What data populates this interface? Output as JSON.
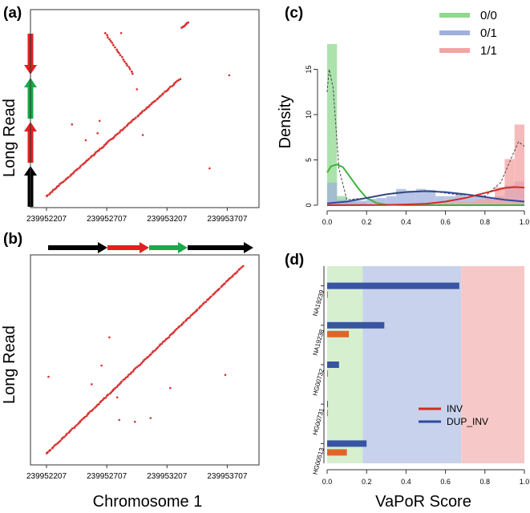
{
  "figure": {
    "x_axis_title_left": "Chromosome 1",
    "x_axis_title_right": "VaPoR Score"
  },
  "chart_data": [
    {
      "panel": "a",
      "label": "(a)",
      "type": "scatter",
      "title": "",
      "ylabel": "Long Read",
      "xlabel": "",
      "xticks": [
        "239952207",
        "239952707",
        "239953207",
        "239953707"
      ],
      "xlim": [
        0,
        1000
      ],
      "ylim": [
        0,
        1000
      ],
      "color": "#d93232",
      "read_structure": [
        {
          "segment": "black",
          "color": "#000000",
          "direction": "up"
        },
        {
          "segment": "red",
          "color": "#e02020",
          "direction": "up"
        },
        {
          "segment": "green",
          "color": "#1aa84a",
          "direction": "up"
        },
        {
          "segment": "red",
          "color": "#e02020",
          "direction": "down"
        }
      ],
      "diagonal_segments": [
        {
          "x": [
            0,
            680
          ],
          "y": [
            0,
            670
          ]
        },
        {
          "x": [
            300,
            440
          ],
          "y": [
            930,
            700
          ]
        },
        {
          "x": [
            690,
            720
          ],
          "y": [
            960,
            990
          ]
        }
      ],
      "outliers": [
        [
          130,
          410
        ],
        [
          270,
          430
        ],
        [
          490,
          350
        ],
        [
          260,
          360
        ],
        [
          460,
          610
        ],
        [
          830,
          160
        ],
        [
          930,
          690
        ],
        [
          380,
          930
        ],
        [
          200,
          320
        ]
      ]
    },
    {
      "panel": "b",
      "label": "(b)",
      "type": "scatter",
      "title": "",
      "ylabel": "Long Read",
      "xlabel": "Chromosome 1",
      "xticks": [
        "239952207",
        "239952707",
        "239953207",
        "239953707"
      ],
      "xlim": [
        0,
        1000
      ],
      "ylim": [
        0,
        1000
      ],
      "color": "#d93232",
      "ref_structure": [
        {
          "segment": "black",
          "color": "#000000"
        },
        {
          "segment": "red",
          "color": "#e02020"
        },
        {
          "segment": "green",
          "color": "#1aa84a"
        },
        {
          "segment": "black",
          "color": "#000000"
        }
      ],
      "diagonal_segments": [
        {
          "x": [
            0,
            1000
          ],
          "y": [
            0,
            1000
          ]
        }
      ],
      "outliers": [
        [
          320,
          620
        ],
        [
          340,
          340
        ],
        [
          280,
          470
        ],
        [
          360,
          300
        ],
        [
          450,
          170
        ],
        [
          530,
          190
        ],
        [
          630,
          350
        ],
        [
          910,
          420
        ],
        [
          10,
          410
        ],
        [
          230,
          370
        ],
        [
          370,
          180
        ]
      ]
    },
    {
      "panel": "c",
      "label": "(c)",
      "type": "bar",
      "title": "",
      "xlabel": "",
      "ylabel": "Density",
      "xlim": [
        0,
        1
      ],
      "ylim": [
        0,
        20
      ],
      "xticks": [
        "0.0",
        "0.2",
        "0.4",
        "0.6",
        "0.8",
        "1.0"
      ],
      "yticks": [
        "0",
        "5",
        "10",
        "15"
      ],
      "bin_width": 0.05,
      "series": [
        {
          "name": "0/0",
          "color": "#90d890",
          "line_color": "#3cb43c",
          "bins": [
            [
              0.0,
              17.8
            ],
            [
              0.05,
              1.0
            ],
            [
              0.1,
              0.5
            ],
            [
              0.15,
              0.3
            ]
          ],
          "curve": [
            [
              0.0,
              3.6
            ],
            [
              0.02,
              4.3
            ],
            [
              0.05,
              4.5
            ],
            [
              0.08,
              4.2
            ],
            [
              0.12,
              3.0
            ],
            [
              0.16,
              1.8
            ],
            [
              0.2,
              0.8
            ],
            [
              0.25,
              0.25
            ],
            [
              0.3,
              0.05
            ],
            [
              0.4,
              0.0
            ],
            [
              1.0,
              0.0
            ]
          ]
        },
        {
          "name": "0/1",
          "color": "#9fb0dc",
          "line_color": "#2e4aa0",
          "bins": [
            [
              0.0,
              2.5
            ],
            [
              0.05,
              0.6
            ],
            [
              0.1,
              0.4
            ],
            [
              0.15,
              0.5
            ],
            [
              0.2,
              0.7
            ],
            [
              0.25,
              0.8
            ],
            [
              0.3,
              1.0
            ],
            [
              0.35,
              1.8
            ],
            [
              0.4,
              1.6
            ],
            [
              0.45,
              1.8
            ],
            [
              0.5,
              1.7
            ],
            [
              0.55,
              1.0
            ],
            [
              0.6,
              1.0
            ],
            [
              0.65,
              1.2
            ],
            [
              0.7,
              1.0
            ],
            [
              0.75,
              1.1
            ],
            [
              0.8,
              0.8
            ],
            [
              0.85,
              1.0
            ],
            [
              0.9,
              2.2
            ],
            [
              0.95,
              2.6
            ]
          ],
          "curve": [
            [
              0.0,
              0.2
            ],
            [
              0.1,
              0.4
            ],
            [
              0.2,
              0.8
            ],
            [
              0.3,
              1.2
            ],
            [
              0.4,
              1.45
            ],
            [
              0.5,
              1.55
            ],
            [
              0.6,
              1.45
            ],
            [
              0.7,
              1.2
            ],
            [
              0.8,
              0.9
            ],
            [
              0.9,
              0.6
            ],
            [
              1.0,
              0.4
            ]
          ]
        },
        {
          "name": "1/1",
          "color": "#f4a3a3",
          "line_color": "#d62828",
          "bins": [
            [
              0.55,
              0.2
            ],
            [
              0.6,
              0.3
            ],
            [
              0.65,
              0.4
            ],
            [
              0.7,
              0.4
            ],
            [
              0.75,
              0.6
            ],
            [
              0.8,
              0.8
            ],
            [
              0.85,
              2.0
            ],
            [
              0.9,
              5.1
            ],
            [
              0.95,
              8.9
            ]
          ],
          "curve": [
            [
              0.0,
              0.0
            ],
            [
              0.3,
              0.02
            ],
            [
              0.5,
              0.15
            ],
            [
              0.6,
              0.4
            ],
            [
              0.7,
              0.8
            ],
            [
              0.8,
              1.35
            ],
            [
              0.9,
              1.9
            ],
            [
              0.95,
              2.0
            ],
            [
              1.0,
              1.95
            ]
          ]
        }
      ],
      "dashed_overall": [
        [
          0.0,
          12.5
        ],
        [
          0.01,
          15.0
        ],
        [
          0.03,
          13.0
        ],
        [
          0.06,
          4.0
        ],
        [
          0.1,
          0.6
        ],
        [
          0.2,
          0.8
        ],
        [
          0.35,
          1.4
        ],
        [
          0.5,
          1.6
        ],
        [
          0.65,
          1.2
        ],
        [
          0.8,
          1.0
        ],
        [
          0.88,
          2.5
        ],
        [
          0.93,
          5.0
        ],
        [
          0.97,
          7.0
        ],
        [
          1.0,
          6.5
        ]
      ],
      "legend": [
        "0/0",
        "0/1",
        "1/1"
      ]
    },
    {
      "panel": "d",
      "label": "(d)",
      "type": "bar",
      "orientation": "horizontal",
      "title": "",
      "xlabel": "VaPoR Score",
      "ylabel": "",
      "xlim": [
        0,
        1
      ],
      "xticks": [
        "0.0",
        "0.2",
        "0.4",
        "0.6",
        "0.8",
        "1.0"
      ],
      "background_bands": [
        {
          "from": 0.0,
          "to": 0.18,
          "color": "#d6efcf"
        },
        {
          "from": 0.18,
          "to": 0.68,
          "color": "#c8d2ec"
        },
        {
          "from": 0.68,
          "to": 1.0,
          "color": "#f6c8c8"
        }
      ],
      "categories": [
        "NA19239",
        "NA19238",
        "HG00732",
        "HG00731",
        "HG00513"
      ],
      "series": [
        {
          "name": "DUP_INV",
          "color": "#3854a3",
          "values": [
            0.67,
            0.29,
            0.06,
            0.0,
            0.2
          ]
        },
        {
          "name": "INV",
          "color": "#e0652a",
          "values": [
            0.0,
            0.11,
            0.0,
            0.0,
            0.1
          ]
        }
      ],
      "legend": [
        {
          "name": "INV",
          "color": "#d62828"
        },
        {
          "name": "DUP_INV",
          "color": "#2e4aa0"
        }
      ]
    }
  ]
}
